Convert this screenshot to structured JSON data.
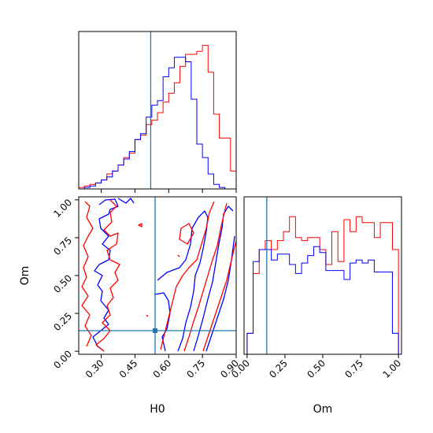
{
  "chart_data": [
    {
      "type": "histogram",
      "panel": "H0 marginal",
      "xlim": [
        0.2,
        0.9
      ],
      "truth_line": 0.52,
      "truth_color": "#1f77b4",
      "bin_edges": [
        0.2,
        0.225,
        0.25,
        0.275,
        0.3,
        0.325,
        0.35,
        0.375,
        0.4,
        0.425,
        0.45,
        0.475,
        0.5,
        0.525,
        0.55,
        0.575,
        0.6,
        0.625,
        0.65,
        0.675,
        0.7,
        0.725,
        0.75,
        0.775,
        0.8,
        0.825,
        0.85,
        0.875,
        0.9
      ],
      "series": [
        {
          "color": "#ff0000",
          "values": [
            0.01,
            0.02,
            0.03,
            0.04,
            0.06,
            0.1,
            0.12,
            0.16,
            0.21,
            0.24,
            0.33,
            0.36,
            0.43,
            0.46,
            0.51,
            0.58,
            0.64,
            0.71,
            0.82,
            0.9,
            0.9,
            0.92,
            0.96,
            0.78,
            0.5,
            0.34,
            0.34,
            0.12
          ]
        },
        {
          "color": "#0000ff",
          "values": [
            0.0,
            0.01,
            0.02,
            0.04,
            0.06,
            0.08,
            0.12,
            0.16,
            0.2,
            0.25,
            0.33,
            0.37,
            0.48,
            0.56,
            0.59,
            0.75,
            0.81,
            0.88,
            0.88,
            0.85,
            0.6,
            0.3,
            0.21,
            0.1,
            0.03,
            0.01,
            0.0,
            0.0
          ]
        }
      ],
      "ylabel": "",
      "xticks_visible": [
        0.3,
        0.45,
        0.6,
        0.75,
        0.9
      ]
    },
    {
      "type": "contour",
      "panel": "H0 vs Om",
      "xlabel": "H0",
      "ylabel": "Om",
      "xlim": [
        0.2,
        0.9
      ],
      "ylim": [
        -0.02,
        1.02
      ],
      "xticks": [
        "0.30",
        "0.45",
        "0.60",
        "0.75",
        "0.90"
      ],
      "yticks": [
        "0.00",
        "0.25",
        "0.50",
        "0.75",
        "1.00"
      ],
      "truth": {
        "H0": 0.52,
        "Om": 0.13
      },
      "truth_color": "#1f77b4",
      "series": [
        {
          "color": "#0000ff",
          "name": ""
        },
        {
          "color": "#ff0000",
          "name": ""
        }
      ]
    },
    {
      "type": "histogram",
      "panel": "Om marginal",
      "xlabel": "Om",
      "xlim": [
        -0.02,
        1.02
      ],
      "xticks": [
        "0.00",
        "0.25",
        "0.50",
        "0.75",
        "1.00"
      ],
      "truth_line": 0.13,
      "truth_color": "#1f77b4",
      "bin_edges": [
        0.0,
        0.04,
        0.08,
        0.12,
        0.16,
        0.2,
        0.24,
        0.28,
        0.32,
        0.36,
        0.4,
        0.44,
        0.48,
        0.52,
        0.56,
        0.6,
        0.64,
        0.68,
        0.72,
        0.76,
        0.8,
        0.84,
        0.88,
        0.92,
        0.96,
        1.0
      ],
      "series": [
        {
          "color": "#ff0000",
          "values": [
            0.14,
            0.54,
            0.7,
            0.76,
            0.7,
            0.76,
            0.82,
            0.92,
            0.78,
            0.76,
            0.78,
            0.78,
            0.7,
            0.6,
            0.82,
            0.62,
            0.9,
            0.82,
            0.92,
            0.88,
            0.88,
            0.78,
            0.88,
            0.88,
            0.7
          ]
        },
        {
          "color": "#0000ff",
          "values": [
            0.14,
            0.62,
            0.7,
            0.7,
            0.63,
            0.67,
            0.67,
            0.6,
            0.54,
            0.61,
            0.66,
            0.72,
            0.68,
            0.56,
            0.56,
            0.56,
            0.5,
            0.61,
            0.63,
            0.61,
            0.63,
            0.55,
            0.55,
            0.55,
            0.14
          ]
        }
      ]
    }
  ],
  "labels": {
    "contour_xlabel": "H0",
    "contour_ylabel": "Om",
    "om_xlabel": "Om"
  }
}
